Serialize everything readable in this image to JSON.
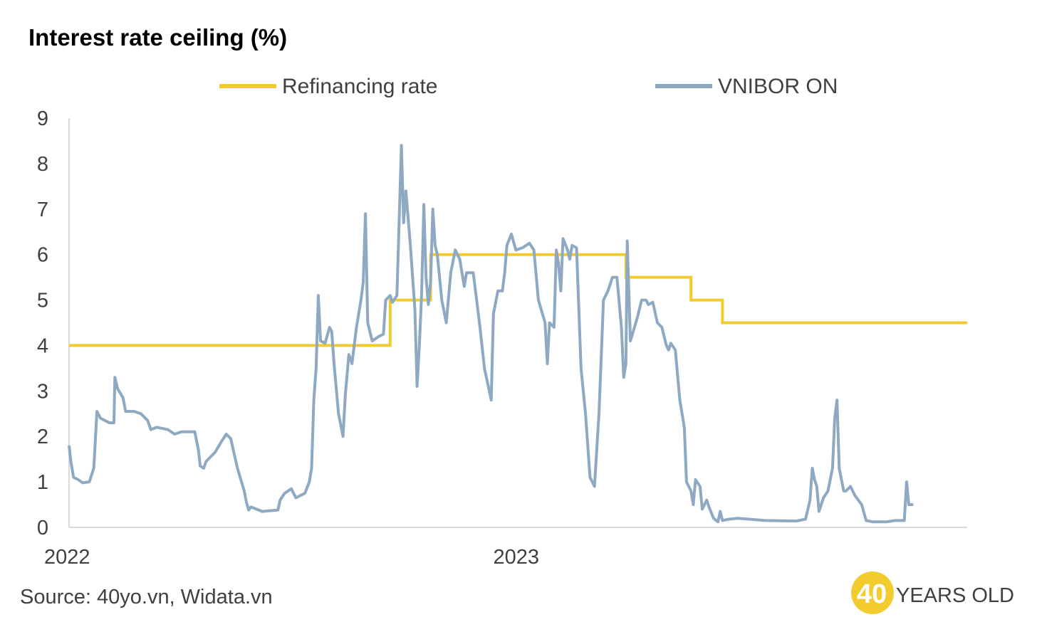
{
  "chart_data": {
    "type": "line",
    "title": "Interest rate ceiling (%)",
    "xlabel": "",
    "ylabel": "",
    "ylim": [
      0,
      9
    ],
    "yticks": [
      0,
      1,
      2,
      3,
      4,
      5,
      6,
      7,
      8,
      9
    ],
    "xlim": [
      2022.0,
      2024.0
    ],
    "xticks": [
      {
        "label": "2022",
        "value": 2022.0
      },
      {
        "label": "2023",
        "value": 2023.0
      }
    ],
    "grid": false,
    "legend_position": "top",
    "series": [
      {
        "name": "Refinancing rate",
        "color": "#f2cc2e",
        "step": true,
        "points": [
          [
            2022.0,
            4.0
          ],
          [
            2022.715,
            4.0
          ],
          [
            2022.715,
            5.0
          ],
          [
            2022.805,
            5.0
          ],
          [
            2022.805,
            6.0
          ],
          [
            2023.24,
            6.0
          ],
          [
            2023.24,
            5.5
          ],
          [
            2023.385,
            5.5
          ],
          [
            2023.385,
            5.0
          ],
          [
            2023.455,
            5.0
          ],
          [
            2023.455,
            4.5
          ],
          [
            2024.0,
            4.5
          ]
        ]
      },
      {
        "name": "VNIBOR ON",
        "color": "#8ea9c1",
        "step": false,
        "points": [
          [
            2022.0,
            1.8
          ],
          [
            2022.004,
            1.45
          ],
          [
            2022.01,
            1.1
          ],
          [
            2022.02,
            1.05
          ],
          [
            2022.03,
            0.98
          ],
          [
            2022.045,
            1.0
          ],
          [
            2022.055,
            1.3
          ],
          [
            2022.062,
            2.55
          ],
          [
            2022.07,
            2.4
          ],
          [
            2022.09,
            2.3
          ],
          [
            2022.1,
            2.3
          ],
          [
            2022.102,
            3.3
          ],
          [
            2022.108,
            3.05
          ],
          [
            2022.12,
            2.85
          ],
          [
            2022.126,
            2.55
          ],
          [
            2022.145,
            2.55
          ],
          [
            2022.16,
            2.5
          ],
          [
            2022.175,
            2.35
          ],
          [
            2022.182,
            2.15
          ],
          [
            2022.195,
            2.2
          ],
          [
            2022.22,
            2.15
          ],
          [
            2022.235,
            2.05
          ],
          [
            2022.25,
            2.1
          ],
          [
            2022.28,
            2.1
          ],
          [
            2022.288,
            1.7
          ],
          [
            2022.292,
            1.35
          ],
          [
            2022.3,
            1.3
          ],
          [
            2022.305,
            1.45
          ],
          [
            2022.325,
            1.65
          ],
          [
            2022.34,
            1.9
          ],
          [
            2022.35,
            2.05
          ],
          [
            2022.36,
            1.95
          ],
          [
            2022.375,
            1.3
          ],
          [
            2022.39,
            0.8
          ],
          [
            2022.395,
            0.55
          ],
          [
            2022.4,
            0.38
          ],
          [
            2022.405,
            0.45
          ],
          [
            2022.43,
            0.35
          ],
          [
            2022.465,
            0.38
          ],
          [
            2022.47,
            0.6
          ],
          [
            2022.48,
            0.75
          ],
          [
            2022.495,
            0.85
          ],
          [
            2022.505,
            0.65
          ],
          [
            2022.525,
            0.75
          ],
          [
            2022.535,
            1.0
          ],
          [
            2022.54,
            1.3
          ],
          [
            2022.545,
            2.8
          ],
          [
            2022.55,
            3.5
          ],
          [
            2022.555,
            5.1
          ],
          [
            2022.56,
            4.1
          ],
          [
            2022.57,
            4.05
          ],
          [
            2022.58,
            4.4
          ],
          [
            2022.585,
            4.3
          ],
          [
            2022.59,
            3.6
          ],
          [
            2022.6,
            2.5
          ],
          [
            2022.61,
            2.0
          ],
          [
            2022.615,
            2.9
          ],
          [
            2022.623,
            3.8
          ],
          [
            2022.63,
            3.6
          ],
          [
            2022.64,
            4.4
          ],
          [
            2022.65,
            5.0
          ],
          [
            2022.655,
            5.4
          ],
          [
            2022.66,
            6.9
          ],
          [
            2022.665,
            4.5
          ],
          [
            2022.675,
            4.1
          ],
          [
            2022.69,
            4.2
          ],
          [
            2022.7,
            4.25
          ],
          [
            2022.705,
            5.0
          ],
          [
            2022.715,
            5.1
          ],
          [
            2022.72,
            4.95
          ],
          [
            2022.73,
            5.1
          ],
          [
            2022.74,
            8.4
          ],
          [
            2022.745,
            6.7
          ],
          [
            2022.75,
            7.4
          ],
          [
            2022.76,
            6.2
          ],
          [
            2022.77,
            4.8
          ],
          [
            2022.775,
            3.1
          ],
          [
            2022.78,
            4.0
          ],
          [
            2022.785,
            5.1
          ],
          [
            2022.79,
            7.1
          ],
          [
            2022.795,
            5.5
          ],
          [
            2022.8,
            4.9
          ],
          [
            2022.805,
            5.4
          ],
          [
            2022.81,
            7.0
          ],
          [
            2022.815,
            6.2
          ],
          [
            2022.82,
            6.0
          ],
          [
            2022.83,
            5.0
          ],
          [
            2022.84,
            4.5
          ],
          [
            2022.85,
            5.6
          ],
          [
            2022.86,
            6.1
          ],
          [
            2022.87,
            5.9
          ],
          [
            2022.88,
            5.3
          ],
          [
            2022.885,
            5.6
          ],
          [
            2022.9,
            5.6
          ],
          [
            2022.915,
            4.4
          ],
          [
            2022.925,
            3.5
          ],
          [
            2022.94,
            2.8
          ],
          [
            2022.945,
            4.7
          ],
          [
            2022.955,
            5.2
          ],
          [
            2022.965,
            5.2
          ],
          [
            2022.97,
            5.6
          ],
          [
            2022.975,
            6.2
          ],
          [
            2022.985,
            6.45
          ],
          [
            2022.995,
            6.1
          ],
          [
            2023.01,
            6.15
          ],
          [
            2023.025,
            6.25
          ],
          [
            2023.035,
            6.1
          ],
          [
            2023.045,
            5.0
          ],
          [
            2023.06,
            4.5
          ],
          [
            2023.065,
            3.6
          ],
          [
            2023.07,
            4.5
          ],
          [
            2023.08,
            4.4
          ],
          [
            2023.085,
            6.1
          ],
          [
            2023.09,
            5.8
          ],
          [
            2023.095,
            5.2
          ],
          [
            2023.1,
            6.35
          ],
          [
            2023.11,
            6.1
          ],
          [
            2023.115,
            5.9
          ],
          [
            2023.12,
            6.2
          ],
          [
            2023.13,
            6.15
          ],
          [
            2023.14,
            3.5
          ],
          [
            2023.15,
            2.5
          ],
          [
            2023.16,
            1.1
          ],
          [
            2023.17,
            0.9
          ],
          [
            2023.18,
            2.5
          ],
          [
            2023.19,
            5.0
          ],
          [
            2023.2,
            5.2
          ],
          [
            2023.21,
            5.5
          ],
          [
            2023.22,
            5.5
          ],
          [
            2023.23,
            4.4
          ],
          [
            2023.235,
            3.3
          ],
          [
            2023.24,
            3.6
          ],
          [
            2023.243,
            6.3
          ],
          [
            2023.25,
            4.1
          ],
          [
            2023.265,
            4.6
          ],
          [
            2023.275,
            5.0
          ],
          [
            2023.285,
            5.0
          ],
          [
            2023.29,
            4.9
          ],
          [
            2023.3,
            4.95
          ],
          [
            2023.31,
            4.5
          ],
          [
            2023.32,
            4.4
          ],
          [
            2023.33,
            4.0
          ],
          [
            2023.335,
            3.9
          ],
          [
            2023.34,
            4.05
          ],
          [
            2023.35,
            3.9
          ],
          [
            2023.36,
            2.8
          ],
          [
            2023.37,
            2.2
          ],
          [
            2023.375,
            1.0
          ],
          [
            2023.385,
            0.8
          ],
          [
            2023.39,
            0.5
          ],
          [
            2023.395,
            1.05
          ],
          [
            2023.405,
            0.9
          ],
          [
            2023.41,
            0.4
          ],
          [
            2023.42,
            0.6
          ],
          [
            2023.425,
            0.45
          ],
          [
            2023.435,
            0.2
          ],
          [
            2023.445,
            0.12
          ],
          [
            2023.45,
            0.35
          ],
          [
            2023.455,
            0.15
          ],
          [
            2023.47,
            0.18
          ],
          [
            2023.49,
            0.2
          ],
          [
            2023.55,
            0.15
          ],
          [
            2023.62,
            0.14
          ],
          [
            2023.64,
            0.18
          ],
          [
            2023.65,
            0.6
          ],
          [
            2023.655,
            1.3
          ],
          [
            2023.66,
            1.05
          ],
          [
            2023.665,
            0.9
          ],
          [
            2023.67,
            0.35
          ],
          [
            2023.68,
            0.65
          ],
          [
            2023.69,
            0.8
          ],
          [
            2023.7,
            1.3
          ],
          [
            2023.705,
            2.4
          ],
          [
            2023.71,
            2.8
          ],
          [
            2023.715,
            1.3
          ],
          [
            2023.725,
            0.8
          ],
          [
            2023.73,
            0.8
          ],
          [
            2023.74,
            0.9
          ],
          [
            2023.75,
            0.7
          ],
          [
            2023.765,
            0.5
          ],
          [
            2023.775,
            0.15
          ],
          [
            2023.79,
            0.12
          ],
          [
            2023.82,
            0.12
          ],
          [
            2023.84,
            0.15
          ],
          [
            2023.86,
            0.15
          ],
          [
            2023.865,
            1.0
          ],
          [
            2023.87,
            0.5
          ],
          [
            2023.88,
            0.5
          ]
        ]
      }
    ],
    "source": "Source: 40yo.vn, Widata.vn"
  },
  "logo": {
    "number": "40",
    "text": "YEARS OLD",
    "circle_color": "#f2cc2e"
  },
  "colors": {
    "axis": "#d9d9d9"
  }
}
